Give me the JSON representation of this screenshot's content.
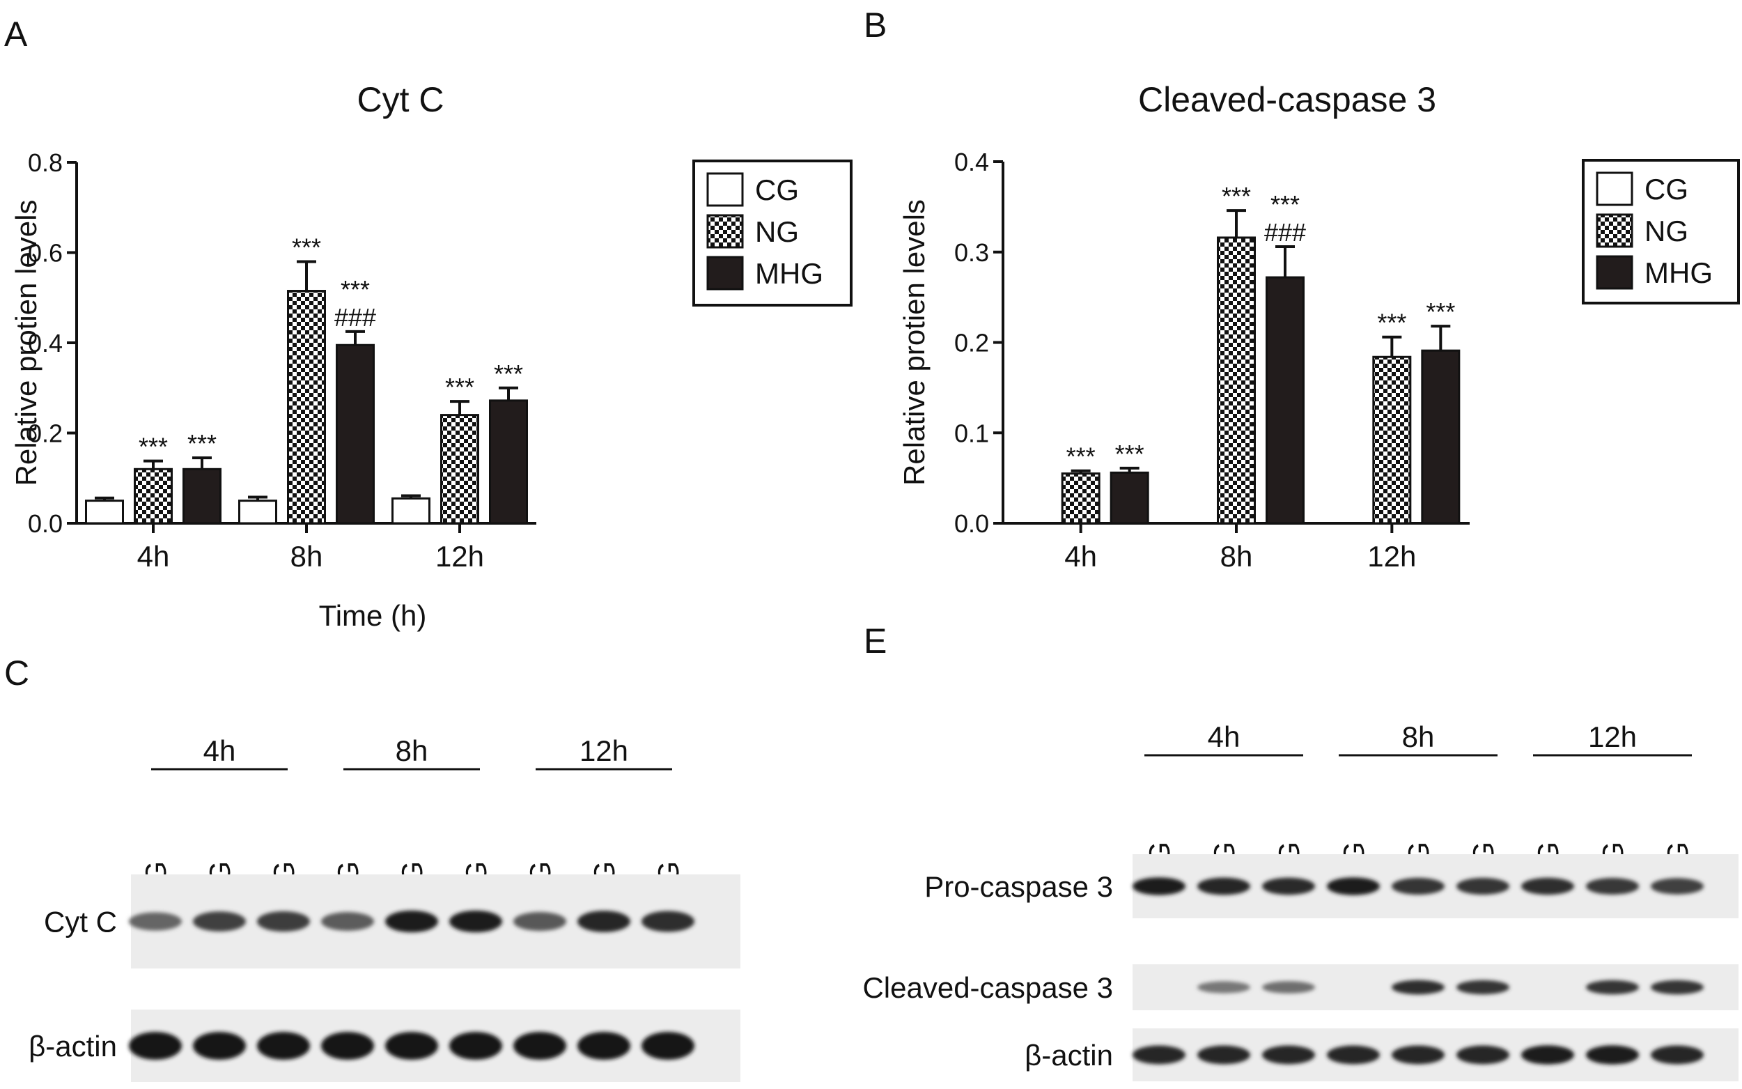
{
  "panels": {
    "a": "A",
    "b": "B",
    "c": "C",
    "e": "E"
  },
  "chart_data": [
    {
      "id": "A",
      "type": "bar",
      "title": "Cyt C",
      "xlabel": "Time (h)",
      "ylabel": "Relative protien levels",
      "categories": [
        "4h",
        "8h",
        "12h"
      ],
      "ylim": [
        0,
        0.8
      ],
      "yticks": [
        "0.0",
        "0.2",
        "0.4",
        "0.6",
        "0.8"
      ],
      "grid": false,
      "legend": "top-right",
      "series": [
        {
          "name": "CG",
          "pattern": "white",
          "values": [
            0.05,
            0.05,
            0.055
          ],
          "errors": [
            0.006,
            0.008,
            0.006
          ]
        },
        {
          "name": "NG",
          "pattern": "checker",
          "values": [
            0.12,
            0.515,
            0.24
          ],
          "errors": [
            0.018,
            0.065,
            0.03
          ]
        },
        {
          "name": "MHG",
          "pattern": "black",
          "values": [
            0.12,
            0.395,
            0.272
          ],
          "errors": [
            0.025,
            0.03,
            0.028
          ]
        }
      ],
      "annotations": [
        {
          "category": "4h",
          "series": "NG",
          "lines": [
            "***"
          ]
        },
        {
          "category": "4h",
          "series": "MHG",
          "lines": [
            "***"
          ]
        },
        {
          "category": "8h",
          "series": "NG",
          "lines": [
            "***"
          ]
        },
        {
          "category": "8h",
          "series": "MHG",
          "lines": [
            "***",
            "###"
          ]
        },
        {
          "category": "12h",
          "series": "NG",
          "lines": [
            "***"
          ]
        },
        {
          "category": "12h",
          "series": "MHG",
          "lines": [
            "***"
          ]
        }
      ]
    },
    {
      "id": "B",
      "type": "bar",
      "title": "Cleaved-caspase 3",
      "xlabel": "",
      "ylabel": "Relative protien levels",
      "categories": [
        "4h",
        "8h",
        "12h"
      ],
      "ylim": [
        0,
        0.4
      ],
      "yticks": [
        "0.0",
        "0.1",
        "0.2",
        "0.3",
        "0.4"
      ],
      "grid": false,
      "legend": "top-right",
      "series": [
        {
          "name": "CG",
          "pattern": "white",
          "values": [
            0,
            0,
            0
          ],
          "errors": [
            0,
            0,
            0
          ]
        },
        {
          "name": "NG",
          "pattern": "checker",
          "values": [
            0.055,
            0.316,
            0.184
          ],
          "errors": [
            0.003,
            0.03,
            0.022
          ]
        },
        {
          "name": "MHG",
          "pattern": "black",
          "values": [
            0.056,
            0.272,
            0.191
          ],
          "errors": [
            0.005,
            0.034,
            0.027
          ]
        }
      ],
      "annotations": [
        {
          "category": "4h",
          "series": "NG",
          "lines": [
            "***"
          ]
        },
        {
          "category": "4h",
          "series": "MHG",
          "lines": [
            "***"
          ]
        },
        {
          "category": "8h",
          "series": "NG",
          "lines": [
            "***"
          ]
        },
        {
          "category": "8h",
          "series": "MHG",
          "lines": [
            "***",
            "###"
          ]
        },
        {
          "category": "12h",
          "series": "NG",
          "lines": [
            "***"
          ]
        },
        {
          "category": "12h",
          "series": "MHG",
          "lines": [
            "***"
          ]
        }
      ]
    }
  ],
  "blots": [
    {
      "id": "C",
      "time_groups": [
        "4h",
        "8h",
        "12h"
      ],
      "lanes": [
        "CG",
        "NG",
        "MHG",
        "CG",
        "NG",
        "MHG",
        "CG",
        "NG",
        "MHG"
      ],
      "rows": [
        {
          "label": "Cyt C",
          "intensity": [
            0.55,
            0.75,
            0.78,
            0.6,
            0.95,
            0.95,
            0.62,
            0.9,
            0.85
          ]
        },
        {
          "label": "β-actin",
          "intensity": [
            1,
            1,
            1,
            1,
            1,
            1,
            1,
            1,
            1
          ]
        }
      ]
    },
    {
      "id": "E",
      "time_groups": [
        "4h",
        "8h",
        "12h"
      ],
      "lanes": [
        "CG",
        "NG",
        "MHG",
        "CG",
        "NG",
        "MHG",
        "CG",
        "NG",
        "MHG"
      ],
      "rows": [
        {
          "label": "Pro-caspase 3",
          "intensity": [
            0.95,
            0.9,
            0.88,
            0.95,
            0.82,
            0.82,
            0.85,
            0.8,
            0.75
          ]
        },
        {
          "label": "Cleaved-caspase 3",
          "intensity": [
            0,
            0.45,
            0.5,
            0,
            0.85,
            0.82,
            0,
            0.82,
            0.82
          ]
        },
        {
          "label": "β-actin",
          "intensity": [
            0.9,
            0.9,
            0.9,
            0.9,
            0.9,
            0.9,
            0.95,
            0.95,
            0.9
          ]
        }
      ]
    }
  ]
}
